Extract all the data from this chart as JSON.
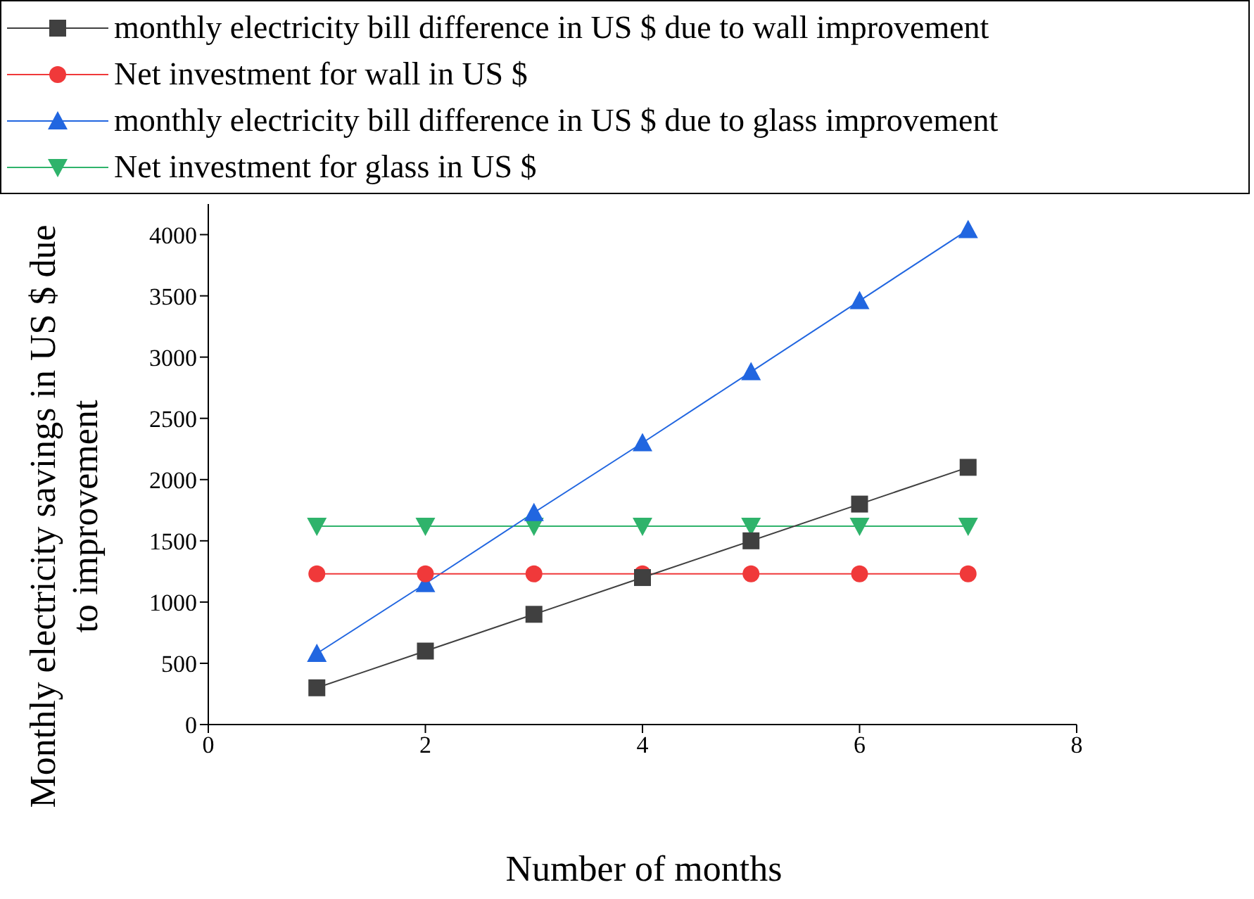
{
  "chart_data": {
    "type": "line",
    "xlabel": "Number of months",
    "ylabel": "Monthly electricity savings in US $ due to improvement",
    "x": [
      1,
      2,
      3,
      4,
      5,
      6,
      7
    ],
    "series": [
      {
        "name": "monthly electricity bill difference in US $ due to wall improvement",
        "color": "#404040",
        "marker": "square",
        "values": [
          300,
          600,
          900,
          1200,
          1500,
          1800,
          2100
        ]
      },
      {
        "name": "Net investment for wall in US $",
        "color": "#f0393a",
        "marker": "circle",
        "values": [
          1230,
          1230,
          1230,
          1230,
          1230,
          1230,
          1230
        ]
      },
      {
        "name": "monthly electricity bill difference in US $ due to glass improvement",
        "color": "#2166e0",
        "marker": "triangle",
        "values": [
          580,
          1150,
          1730,
          2300,
          2880,
          3460,
          4040
        ]
      },
      {
        "name": "Net investment for glass in US $",
        "color": "#2fb36b",
        "marker": "triangle-down",
        "values": [
          1620,
          1620,
          1620,
          1620,
          1620,
          1620,
          1620
        ]
      }
    ],
    "xlim": [
      0,
      8
    ],
    "xticks": [
      0,
      2,
      4,
      6,
      8
    ],
    "ylim": [
      0,
      4250
    ],
    "yticks": [
      0,
      500,
      1000,
      1500,
      2000,
      2500,
      3000,
      3500,
      4000
    ],
    "legend": "top",
    "line_style": "solid"
  }
}
